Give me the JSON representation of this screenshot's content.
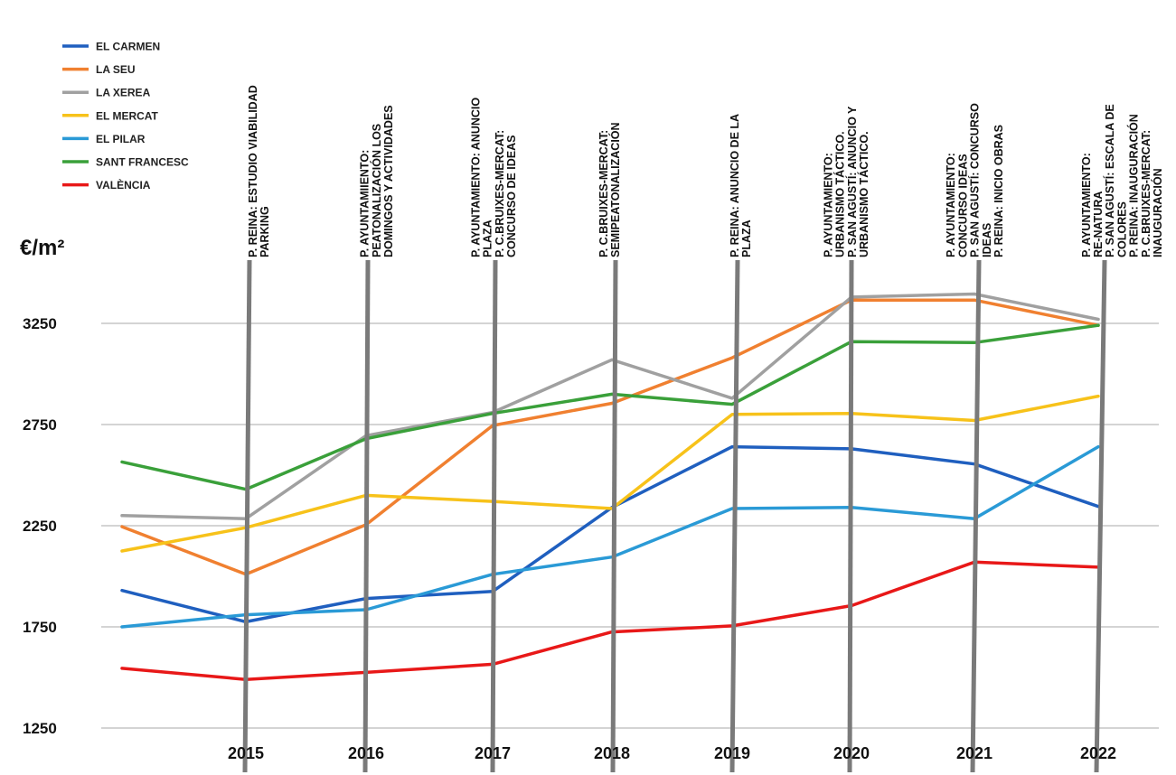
{
  "chart_data": {
    "type": "line",
    "ylabel": "€/m²",
    "ylim": [
      1250,
      3500
    ],
    "yticks": [
      1250,
      1750,
      2250,
      2750,
      3250
    ],
    "x": [
      "2014",
      "2015",
      "2016",
      "2017",
      "2018",
      "2019",
      "2020",
      "2021",
      "2022"
    ],
    "x_tick_labels": [
      "2015",
      "2016",
      "2017",
      "2018",
      "2019",
      "2020",
      "2021",
      "2022"
    ],
    "legend_position": "top-left",
    "grid": "horizontal",
    "series": [
      {
        "name": "EL CARMEN",
        "color": "#1f5fbf",
        "values": [
          1930,
          1775,
          1890,
          1925,
          2340,
          2640,
          2630,
          2555,
          2345
        ]
      },
      {
        "name": "LA SEU",
        "color": "#f08030",
        "values": [
          2245,
          2010,
          2255,
          2745,
          2855,
          3080,
          3365,
          3365,
          3240
        ]
      },
      {
        "name": "LA XEREA",
        "color": "#a0a0a0",
        "values": [
          2300,
          2285,
          2695,
          2810,
          3070,
          2880,
          3380,
          3395,
          3270
        ]
      },
      {
        "name": "EL MERCAT",
        "color": "#f7c21a",
        "values": [
          2125,
          2240,
          2400,
          2370,
          2335,
          2800,
          2805,
          2770,
          2890
        ]
      },
      {
        "name": "EL PILAR",
        "color": "#2a9ad6",
        "values": [
          1750,
          1810,
          1835,
          2010,
          2095,
          2335,
          2340,
          2285,
          2640
        ]
      },
      {
        "name": "SANT FRANCESC",
        "color": "#3aa03a",
        "values": [
          2565,
          2430,
          2680,
          2805,
          2900,
          2850,
          3160,
          3155,
          3240
        ]
      },
      {
        "name": "VALÈNCIA",
        "color": "#e81818",
        "values": [
          1545,
          1490,
          1525,
          1565,
          1725,
          1755,
          1855,
          2070,
          2045
        ]
      }
    ],
    "annotations": [
      {
        "year": "2015",
        "lines": [
          "P. REINA: ESTUDIO VIABILIDAD",
          "PARKING"
        ]
      },
      {
        "year": "2016",
        "lines": [
          "P. AYUNTAMIIENTO:",
          "PEATONALIZACIÓN LOS",
          "DOMINGOS Y ACTIVIDADES"
        ]
      },
      {
        "year": "2017",
        "lines": [
          "P. AYUNTAMIENTO: ANUNCIO",
          "PLAZA",
          "P. C.BRUIXES-MERCAT:",
          "CONCURSO DE IDEAS"
        ]
      },
      {
        "year": "2018",
        "lines": [
          "P. C.BRUIXES-MERCAT:",
          "SEMIPEATONALIZACIÓN"
        ]
      },
      {
        "year": "2019",
        "lines": [
          "P. REINA: ANUNCIO DE LA",
          "PLAZA"
        ]
      },
      {
        "year": "2020",
        "lines": [
          "P. AYUNTAMIENTO:",
          "URBANISMO TÁCTICO.",
          "P. SAN AGUSTÍ: ANUNCIO Y",
          "URBANISMO TÁCTICO."
        ]
      },
      {
        "year": "2021",
        "lines": [
          "P. AYUNTAMIENTO:",
          "CONCURSO IDEAS",
          "P. SAN AGUSTÍ: CONCURSO",
          "IDEAS",
          "P. REINA: INICIO OBRAS"
        ]
      },
      {
        "year": "2022",
        "lines": [
          "P. AYUNTAMIENTO:",
          "RE-NATURA",
          "P. SAN AGUSTÍ: ESCALA DE",
          "COLORES",
          "P. REINA: INAUGURACIÓN",
          "P. C.BRUIXES-MERCAT:",
          "INAUGURACIÓN"
        ]
      }
    ]
  }
}
